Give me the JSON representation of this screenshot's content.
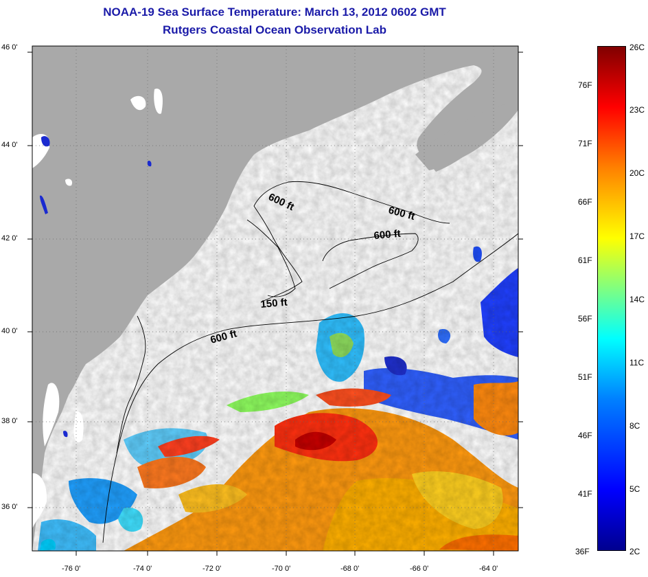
{
  "header": {
    "title": "NOAA-19 Sea Surface Temperature:  March 13, 2012 0602 GMT",
    "subtitle": "Rutgers Coastal Ocean Observation Lab"
  },
  "map": {
    "lat_ticks": [
      "46 0'",
      "44 0'",
      "42 0'",
      "40 0'",
      "38 0'",
      "36 0'"
    ],
    "lon_ticks": [
      "-76 0'",
      "-74 0'",
      "-72 0'",
      "-70 0'",
      "-68 0'",
      "-66 0'",
      "-64 0'"
    ],
    "contour_labels": [
      "600 ft",
      "600 ft",
      "600 ft",
      "150 ft",
      "600 ft"
    ],
    "colors": {
      "land": "#a9a9a9",
      "cloud": "#ffffff",
      "grid": "#555555"
    }
  },
  "colorbar": {
    "fahrenheit_labels": [
      "76F",
      "71F",
      "66F",
      "61F",
      "56F",
      "51F",
      "46F",
      "41F",
      "36F"
    ],
    "celsius_labels": [
      "26C",
      "23C",
      "20C",
      "17C",
      "14C",
      "11C",
      "8C",
      "5C",
      "2C"
    ]
  }
}
